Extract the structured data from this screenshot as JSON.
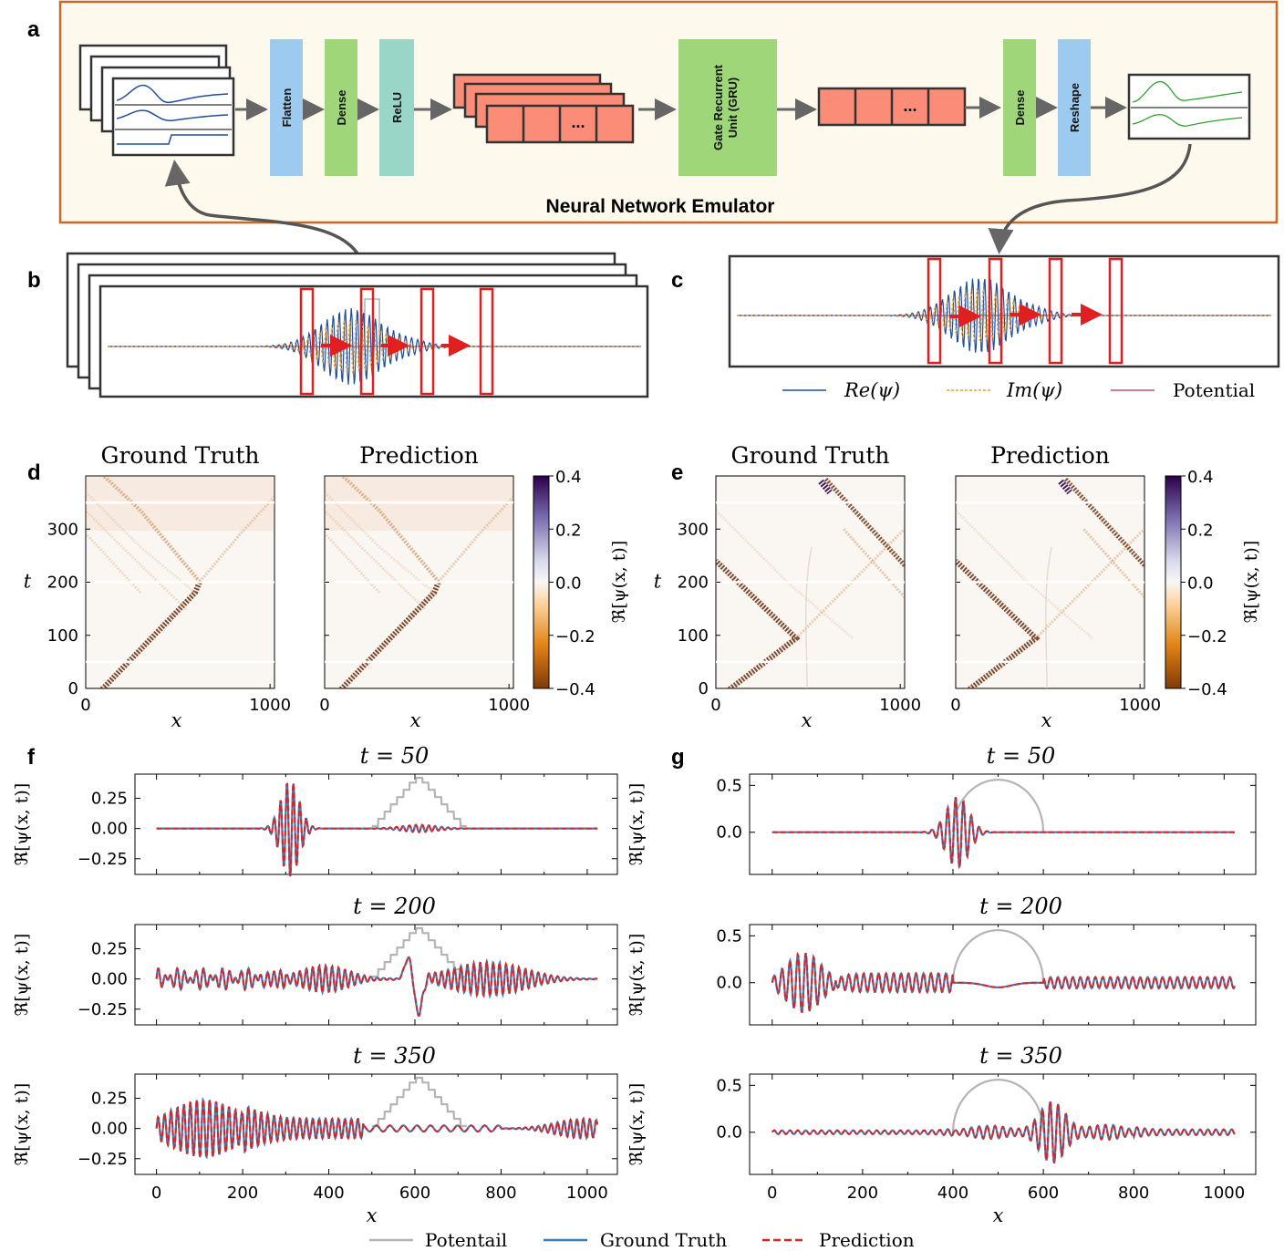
{
  "panel_labels": {
    "a": "a",
    "b": "b",
    "c": "c",
    "d": "d",
    "e": "e",
    "f": "f",
    "g": "g"
  },
  "colors": {
    "re_psi": "#1f4e9a",
    "im_psi": "#f0a030",
    "potential_line": "#c0506a",
    "flatten": "#9ccbef",
    "dense": "#9fd67a",
    "relu": "#9ad6c8",
    "gru": "#9fd67a",
    "reshape": "#9ccbef",
    "feature_block": "#fa8c78",
    "panel_bg": "#fdf9ec",
    "panel_border": "#c8682a",
    "ground_truth": "#3a7ebf",
    "prediction": "#d62728",
    "potential_gray": "#b4b4b4"
  },
  "diagram": {
    "blocks": [
      {
        "label": "Flatten",
        "color": "flatten"
      },
      {
        "label": "Dense",
        "color": "dense"
      },
      {
        "label": "ReLU",
        "color": "relu"
      },
      {
        "label": "Gate Recurrent Unit (GRU)",
        "line1": "Gate Recurrent",
        "line2": "Unit (GRU)",
        "color": "gru"
      },
      {
        "label": "Dense",
        "color": "dense"
      },
      {
        "label": "Reshape",
        "color": "reshape"
      }
    ],
    "ellipsis": "...",
    "emulator_title": "Neural Network Emulator"
  },
  "legend_top": {
    "re": "Re(ψ)",
    "im": "Im(ψ)",
    "pot": "Potential"
  },
  "heatmaps": {
    "title_left": "Ground Truth",
    "title_right": "Prediction",
    "ylabel": "t",
    "xlabel": "x",
    "xticks": [
      "0",
      "1000"
    ],
    "yticks": [
      "0",
      "100",
      "200",
      "300"
    ],
    "colorbar": {
      "label": "ℜ[ψ(x, t)]",
      "ticks": [
        "0.4",
        "0.2",
        "0.0",
        "−0.2",
        "−0.4"
      ],
      "range": [
        -0.4,
        0.4
      ]
    }
  },
  "chart_data": [
    {
      "type": "line",
      "panel": "f",
      "title": "t = 50",
      "ylabel": "ℜ[ψ(x, t)]",
      "yticks": [
        "0.25",
        "0.00",
        "−0.25"
      ],
      "ylim": [
        -0.38,
        0.45
      ],
      "series": [
        {
          "name": "Ground Truth"
        },
        {
          "name": "Prediction"
        },
        {
          "name": "Potentail"
        }
      ]
    },
    {
      "type": "line",
      "panel": "f",
      "title": "t = 200",
      "ylabel": "ℜ[ψ(x, t)]",
      "yticks": [
        "0.25",
        "0.00",
        "−0.25"
      ],
      "ylim": [
        -0.38,
        0.45
      ]
    },
    {
      "type": "line",
      "panel": "f",
      "title": "t = 350",
      "ylabel": "ℜ[ψ(x, t)]",
      "yticks": [
        "0.25",
        "0.00",
        "−0.25"
      ],
      "ylim": [
        -0.38,
        0.45
      ],
      "xlabel": "x",
      "xticks": [
        "0",
        "200",
        "400",
        "600",
        "800",
        "1000"
      ],
      "xlim": [
        -50,
        1070
      ]
    },
    {
      "type": "line",
      "panel": "g",
      "title": "t = 50",
      "ylabel": "ℜ[ψ(x, t)]",
      "yticks": [
        "0.5",
        "0.0"
      ],
      "ylim": [
        -0.45,
        0.62
      ]
    },
    {
      "type": "line",
      "panel": "g",
      "title": "t = 200",
      "ylabel": "ℜ[ψ(x, t)]",
      "yticks": [
        "0.5",
        "0.0"
      ],
      "ylim": [
        -0.45,
        0.62
      ]
    },
    {
      "type": "line",
      "panel": "g",
      "title": "t = 350",
      "ylabel": "ℜ[ψ(x, t)]",
      "yticks": [
        "0.5",
        "0.0"
      ],
      "ylim": [
        -0.45,
        0.62
      ],
      "xlabel": "x",
      "xticks": [
        "0",
        "200",
        "400",
        "600",
        "800",
        "1000"
      ],
      "xlim": [
        -50,
        1070
      ]
    }
  ],
  "legend_bottom": {
    "pot": "Potentail",
    "gt": "Ground Truth",
    "pred": "Prediction"
  }
}
